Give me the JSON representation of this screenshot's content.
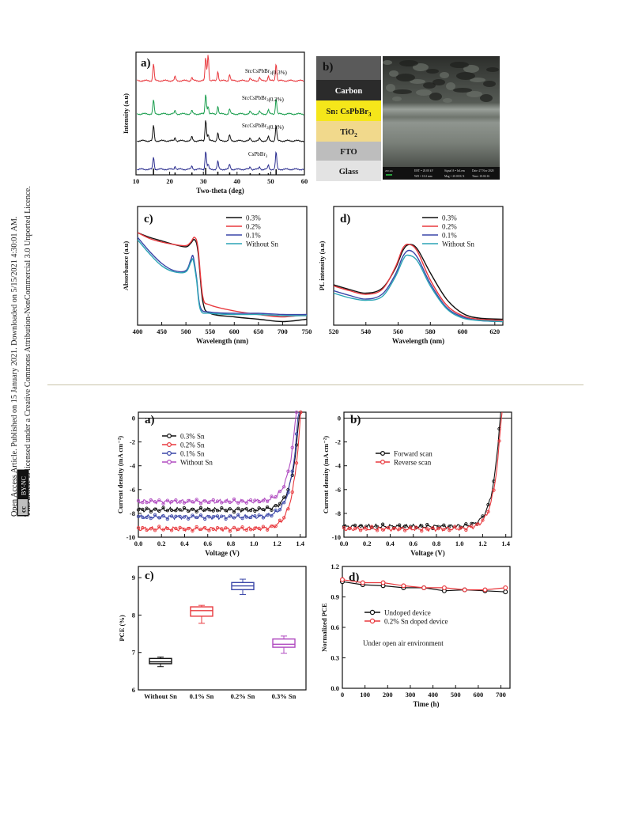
{
  "sidebar": {
    "line1": "Open Access Article. Published on 15 January 2021. Downloaded on 5/15/2021 4:30:01 AM.",
    "line2": "This article is licensed under a Creative Commons Attribution-NonCommercial 3.0 Unported Licence.",
    "badge": "BY-NC",
    "cc": "cc"
  },
  "fig1": {
    "a": {
      "letter": "a)",
      "xlabel": "Two-theta (deg)",
      "ylabel": "Intensity (a.u)",
      "xticks": [
        "10",
        "20",
        "30",
        "40",
        "50",
        "60"
      ],
      "series": [
        {
          "name": "Sn:CsPbBr3(0.3%)",
          "color": "#e8383d"
        },
        {
          "name": "Sn:CsPbBr3(0.2%)",
          "color": "#1a9e4e"
        },
        {
          "name": "Sn:CsPbBr3(0.1%)",
          "color": "#111111"
        },
        {
          "name": "CsPbBr3",
          "color": "#2b2e8f"
        }
      ],
      "peaks": [
        15.2,
        21.6,
        26.6,
        30.7,
        34.3,
        37.8,
        43.9,
        46.7,
        49.3,
        51.6
      ],
      "chart_data": {
        "type": "line",
        "xlabel": "Two-theta (deg)",
        "ylabel": "Intensity (a.u)",
        "xlim": [
          10,
          60
        ],
        "series_names": [
          "Sn:CsPbBr3(0.3%)",
          "Sn:CsPbBr3(0.2%)",
          "Sn:CsPbBr3(0.1%)",
          "CsPbBr3"
        ]
      }
    },
    "b": {
      "letter": "b)",
      "layers": [
        {
          "label": "Carbon",
          "bg": "#2b2b2b",
          "fg": "#ffffff"
        },
        {
          "label": "Sn: CsPbBr3",
          "bg": "#f5e61a",
          "fg": "#1a1a1a"
        },
        {
          "label": "TiO2",
          "bg": "#f1d98c",
          "fg": "#1a1a1a"
        },
        {
          "label": "FTO",
          "bg": "#bdbdbd",
          "fg": "#1a1a1a"
        },
        {
          "label": "Glass",
          "bg": "#e3e3e3",
          "fg": "#1a1a1a"
        }
      ],
      "sem": {
        "scale": "200 nm",
        "eht": "EHT = 20.00 kV",
        "wd": "WD = 10.2 mm",
        "signal": "Signal A = InLens",
        "mag": "Mag = 20.00 K X",
        "date": "Date :27 Nov 2020",
        "time": "Time :10:02:16"
      }
    },
    "c": {
      "letter": "c)",
      "xlabel": "Wavelength (nm)",
      "ylabel": "Absorbance (a.u)",
      "xticks": [
        "400",
        "450",
        "500",
        "550",
        "600",
        "650",
        "700",
        "750"
      ],
      "legend": [
        {
          "name": "0.3%",
          "color": "#111111"
        },
        {
          "name": "0.2%",
          "color": "#e8383d"
        },
        {
          "name": "0.1%",
          "color": "#3a46a8"
        },
        {
          "name": "Without Sn",
          "color": "#2aa4b5"
        }
      ],
      "chart_data": {
        "type": "line",
        "xlim": [
          400,
          750
        ],
        "edge_nm": 520,
        "series": [
          {
            "name": "0.3%",
            "x": [
              400,
              425,
              450,
              475,
              500,
              510,
              518,
              525,
              535,
              550,
              600,
              650,
              700,
              750
            ],
            "y": [
              0.78,
              0.74,
              0.71,
              0.68,
              0.66,
              0.69,
              0.72,
              0.62,
              0.2,
              0.1,
              0.07,
              0.05,
              0.03,
              0.05
            ]
          },
          {
            "name": "0.2%",
            "x": [
              400,
              425,
              450,
              475,
              500,
              510,
              518,
              525,
              535,
              550,
              600,
              650,
              700,
              750
            ],
            "y": [
              0.78,
              0.73,
              0.7,
              0.68,
              0.67,
              0.7,
              0.74,
              0.65,
              0.24,
              0.17,
              0.12,
              0.09,
              0.07,
              0.09
            ]
          },
          {
            "name": "0.1%",
            "x": [
              400,
              425,
              450,
              475,
              500,
              510,
              515,
              522,
              530,
              550,
              600,
              650,
              700,
              750
            ],
            "y": [
              0.74,
              0.62,
              0.52,
              0.46,
              0.46,
              0.55,
              0.58,
              0.4,
              0.15,
              0.11,
              0.1,
              0.1,
              0.09,
              0.09
            ]
          },
          {
            "name": "Without Sn",
            "x": [
              400,
              425,
              450,
              475,
              500,
              510,
              515,
              522,
              530,
              550,
              600,
              650,
              700,
              750
            ],
            "y": [
              0.72,
              0.6,
              0.5,
              0.45,
              0.45,
              0.53,
              0.55,
              0.38,
              0.13,
              0.1,
              0.09,
              0.09,
              0.08,
              0.08
            ]
          }
        ]
      }
    },
    "d": {
      "letter": "d)",
      "xlabel": "Wavelength (nm)",
      "ylabel": "PL intensity (a.u)",
      "xticks": [
        "520",
        "540",
        "560",
        "580",
        "600",
        "620"
      ],
      "legend": [
        {
          "name": "0.3%",
          "color": "#111111"
        },
        {
          "name": "0.2%",
          "color": "#e8383d"
        },
        {
          "name": "0.1%",
          "color": "#3a46a8"
        },
        {
          "name": "Without Sn",
          "color": "#2aa4b5"
        }
      ],
      "chart_data": {
        "type": "line",
        "xlim": [
          520,
          625
        ],
        "series": [
          {
            "name": "0.3%",
            "x": [
              520,
              530,
              540,
              550,
              558,
              563,
              567,
              572,
              580,
              590,
              600,
              610,
              625
            ],
            "y": [
              0.34,
              0.3,
              0.27,
              0.31,
              0.47,
              0.63,
              0.68,
              0.64,
              0.44,
              0.22,
              0.1,
              0.06,
              0.05
            ]
          },
          {
            "name": "0.2%",
            "x": [
              520,
              530,
              540,
              550,
              558,
              563,
              567,
              572,
              580,
              590,
              600,
              610,
              625
            ],
            "y": [
              0.33,
              0.29,
              0.26,
              0.3,
              0.48,
              0.65,
              0.68,
              0.62,
              0.38,
              0.17,
              0.08,
              0.05,
              0.04
            ]
          },
          {
            "name": "0.1%",
            "x": [
              520,
              530,
              540,
              550,
              558,
              563,
              567,
              572,
              580,
              590,
              600,
              610,
              625
            ],
            "y": [
              0.29,
              0.25,
              0.22,
              0.26,
              0.42,
              0.58,
              0.63,
              0.57,
              0.35,
              0.15,
              0.07,
              0.04,
              0.03
            ]
          },
          {
            "name": "Without Sn",
            "x": [
              520,
              530,
              540,
              550,
              558,
              563,
              566,
              572,
              580,
              590,
              600,
              610,
              625
            ],
            "y": [
              0.27,
              0.23,
              0.21,
              0.24,
              0.4,
              0.55,
              0.59,
              0.54,
              0.33,
              0.14,
              0.06,
              0.04,
              0.03
            ]
          }
        ]
      }
    }
  },
  "fig2": {
    "a": {
      "letter": "a)",
      "xlabel": "Voltage (V)",
      "ylabel": "Current density (mA cm⁻²)",
      "xticks": [
        "0.0",
        "0.2",
        "0.4",
        "0.6",
        "0.8",
        "1.0",
        "1.2",
        "1.4"
      ],
      "yticks": [
        "0",
        "-2",
        "-4",
        "-6",
        "-8",
        "-10"
      ],
      "legend": [
        {
          "name": "0.3% Sn",
          "color": "#111111"
        },
        {
          "name": "0.2% Sn",
          "color": "#e8383d"
        },
        {
          "name": "0.1% Sn",
          "color": "#3a46a8"
        },
        {
          "name": "Without Sn",
          "color": "#b04bc0"
        }
      ],
      "chart_data": {
        "type": "line",
        "xlim": [
          0,
          1.45
        ],
        "ylim": [
          -10,
          0.5
        ],
        "series": [
          {
            "name": "0.3% Sn",
            "jsc": -7.7,
            "voc": 1.39,
            "n": 1.0
          },
          {
            "name": "0.2% Sn",
            "jsc": -9.3,
            "voc": 1.4,
            "n": 1.0
          },
          {
            "name": "0.1% Sn",
            "jsc": -8.3,
            "voc": 1.38,
            "n": 1.0
          },
          {
            "name": "Without Sn",
            "jsc": -7.0,
            "voc": 1.36,
            "n": 1.0
          }
        ]
      }
    },
    "b": {
      "letter": "b)",
      "xlabel": "Voltage (V)",
      "ylabel": "Current density (mA cm⁻²)",
      "xticks": [
        "0.0",
        "0.2",
        "0.4",
        "0.6",
        "0.8",
        "1.0",
        "1.2",
        "1.4"
      ],
      "yticks": [
        "0",
        "-2",
        "-4",
        "-6",
        "-8",
        "-10"
      ],
      "legend": [
        {
          "name": "Forward scan",
          "color": "#111111"
        },
        {
          "name": "Reverse scan",
          "color": "#e8383d"
        }
      ],
      "chart_data": {
        "type": "line",
        "xlim": [
          0,
          1.45
        ],
        "ylim": [
          -10,
          0.5
        ],
        "series": [
          {
            "name": "Forward scan",
            "jsc": -9.1,
            "voc": 1.35
          },
          {
            "name": "Reverse scan",
            "jsc": -9.3,
            "voc": 1.36
          }
        ]
      }
    },
    "c": {
      "letter": "c)",
      "ylabel": "PCE (%)",
      "yticks": [
        "6",
        "7",
        "8",
        "9"
      ],
      "chart_data": {
        "type": "box",
        "ylim": [
          6,
          9.3
        ],
        "categories": [
          "Without Sn",
          "0.1% Sn",
          "0.2% Sn",
          "0.3% Sn"
        ],
        "boxes": [
          {
            "name": "Without Sn",
            "min": 6.62,
            "q1": 6.7,
            "median": 6.75,
            "q3": 6.84,
            "max": 6.88,
            "color": "#111111"
          },
          {
            "name": "0.1% Sn",
            "min": 7.78,
            "q1": 7.97,
            "median": 8.12,
            "q3": 8.22,
            "max": 8.26,
            "color": "#e8383d"
          },
          {
            "name": "0.2% Sn",
            "min": 8.55,
            "q1": 8.68,
            "median": 8.78,
            "q3": 8.87,
            "max": 8.96,
            "color": "#3a46a8"
          },
          {
            "name": "0.3% Sn",
            "min": 6.98,
            "q1": 7.14,
            "median": 7.22,
            "q3": 7.36,
            "max": 7.44,
            "color": "#b04bc0"
          }
        ]
      }
    },
    "d": {
      "letter": "d)",
      "xlabel": "Time (h)",
      "ylabel": "Normalized PCE",
      "xticks": [
        "0",
        "100",
        "200",
        "300",
        "400",
        "500",
        "600",
        "700"
      ],
      "yticks": [
        "0.0",
        "0.3",
        "0.6",
        "0.9",
        "1.2"
      ],
      "annotation": "Under open air environment",
      "legend": [
        {
          "name": "Undoped device",
          "color": "#111111"
        },
        {
          "name": "0.2% Sn doped device",
          "color": "#e8383d"
        }
      ],
      "chart_data": {
        "type": "line",
        "xlim": [
          0,
          740
        ],
        "ylim": [
          0,
          1.2
        ],
        "series": [
          {
            "name": "Undoped device",
            "x": [
              0,
              90,
              180,
              270,
              360,
              450,
              540,
              630,
              720
            ],
            "y": [
              1.05,
              1.02,
              1.01,
              0.99,
              0.99,
              0.96,
              0.97,
              0.96,
              0.95
            ]
          },
          {
            "name": "0.2% Sn doped device",
            "x": [
              0,
              90,
              180,
              270,
              360,
              450,
              540,
              630,
              720
            ],
            "y": [
              1.07,
              1.04,
              1.04,
              1.01,
              0.99,
              0.99,
              0.97,
              0.97,
              0.99
            ]
          }
        ]
      }
    }
  }
}
